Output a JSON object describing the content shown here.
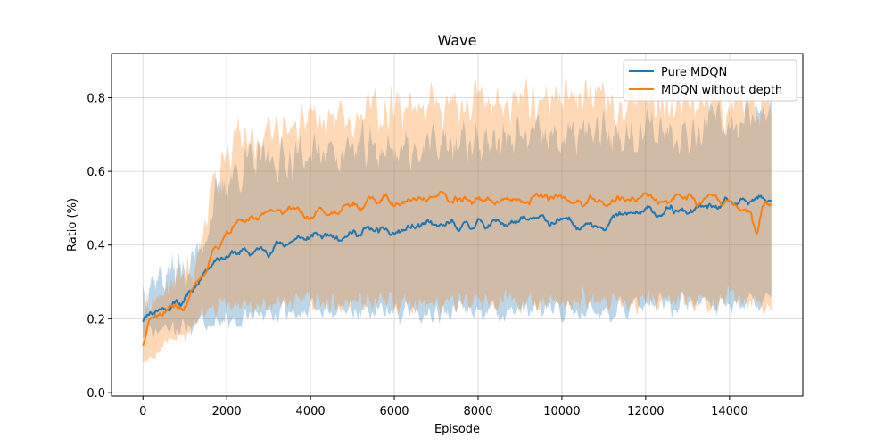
{
  "chart_data": {
    "type": "line",
    "title": "Wave",
    "xlabel": "Episode",
    "ylabel": "Ratio (%)",
    "xlim": [
      -750,
      15750
    ],
    "ylim": [
      -0.01,
      0.92
    ],
    "xticks": [
      0,
      2000,
      4000,
      6000,
      8000,
      10000,
      12000,
      14000
    ],
    "yticks": [
      0.0,
      0.2,
      0.4,
      0.6,
      0.8
    ],
    "grid": true,
    "legend_position": "top-right",
    "series": [
      {
        "name": "Pure MDQN",
        "color": "#1f77b4",
        "points": [
          [
            0,
            0.21
          ],
          [
            200,
            0.22
          ],
          [
            500,
            0.23
          ],
          [
            800,
            0.24
          ],
          [
            1000,
            0.25
          ],
          [
            1200,
            0.28
          ],
          [
            1400,
            0.32
          ],
          [
            1600,
            0.35
          ],
          [
            1800,
            0.37
          ],
          [
            2000,
            0.37
          ],
          [
            2300,
            0.38
          ],
          [
            2600,
            0.38
          ],
          [
            3000,
            0.39
          ],
          [
            3500,
            0.41
          ],
          [
            4000,
            0.42
          ],
          [
            4500,
            0.43
          ],
          [
            5000,
            0.43
          ],
          [
            5500,
            0.44
          ],
          [
            6000,
            0.43
          ],
          [
            6500,
            0.45
          ],
          [
            7000,
            0.45
          ],
          [
            7500,
            0.45
          ],
          [
            8000,
            0.46
          ],
          [
            8500,
            0.46
          ],
          [
            9000,
            0.46
          ],
          [
            9500,
            0.47
          ],
          [
            10000,
            0.46
          ],
          [
            10500,
            0.46
          ],
          [
            11000,
            0.46
          ],
          [
            11500,
            0.48
          ],
          [
            12000,
            0.49
          ],
          [
            12500,
            0.49
          ],
          [
            13000,
            0.49
          ],
          [
            13500,
            0.5
          ],
          [
            14000,
            0.51
          ],
          [
            14500,
            0.51
          ],
          [
            14800,
            0.53
          ],
          [
            15000,
            0.52
          ]
        ],
        "band_upper": [
          [
            0,
            0.3
          ],
          [
            500,
            0.32
          ],
          [
            1000,
            0.34
          ],
          [
            1300,
            0.37
          ],
          [
            1600,
            0.48
          ],
          [
            2000,
            0.58
          ],
          [
            2500,
            0.62
          ],
          [
            3000,
            0.63
          ],
          [
            4000,
            0.65
          ],
          [
            5000,
            0.66
          ],
          [
            6000,
            0.66
          ],
          [
            7000,
            0.67
          ],
          [
            8000,
            0.68
          ],
          [
            9000,
            0.69
          ],
          [
            10000,
            0.69
          ],
          [
            11000,
            0.7
          ],
          [
            12000,
            0.71
          ],
          [
            13000,
            0.72
          ],
          [
            14000,
            0.74
          ],
          [
            14500,
            0.76
          ],
          [
            15000,
            0.78
          ]
        ],
        "band_lower": [
          [
            0,
            0.15
          ],
          [
            500,
            0.17
          ],
          [
            1000,
            0.18
          ],
          [
            1500,
            0.19
          ],
          [
            2000,
            0.2
          ],
          [
            3000,
            0.21
          ],
          [
            4000,
            0.22
          ],
          [
            5000,
            0.22
          ],
          [
            6000,
            0.22
          ],
          [
            7000,
            0.22
          ],
          [
            8000,
            0.22
          ],
          [
            9000,
            0.22
          ],
          [
            10000,
            0.22
          ],
          [
            11000,
            0.22
          ],
          [
            12000,
            0.23
          ],
          [
            13000,
            0.24
          ],
          [
            14000,
            0.24
          ],
          [
            15000,
            0.25
          ]
        ]
      },
      {
        "name": "MDQN without depth",
        "color": "#ff7f0e",
        "points": [
          [
            0,
            0.13
          ],
          [
            150,
            0.19
          ],
          [
            500,
            0.21
          ],
          [
            800,
            0.22
          ],
          [
            1000,
            0.24
          ],
          [
            1300,
            0.3
          ],
          [
            1600,
            0.37
          ],
          [
            1800,
            0.4
          ],
          [
            2000,
            0.45
          ],
          [
            2300,
            0.47
          ],
          [
            2600,
            0.47
          ],
          [
            3000,
            0.48
          ],
          [
            3500,
            0.49
          ],
          [
            4000,
            0.48
          ],
          [
            4500,
            0.49
          ],
          [
            5000,
            0.5
          ],
          [
            5500,
            0.53
          ],
          [
            6000,
            0.52
          ],
          [
            6500,
            0.53
          ],
          [
            7000,
            0.53
          ],
          [
            7500,
            0.52
          ],
          [
            8000,
            0.52
          ],
          [
            8500,
            0.52
          ],
          [
            9000,
            0.52
          ],
          [
            9500,
            0.53
          ],
          [
            10000,
            0.53
          ],
          [
            10500,
            0.52
          ],
          [
            11000,
            0.51
          ],
          [
            11500,
            0.52
          ],
          [
            12000,
            0.53
          ],
          [
            12500,
            0.52
          ],
          [
            13000,
            0.53
          ],
          [
            13500,
            0.52
          ],
          [
            14000,
            0.52
          ],
          [
            14500,
            0.5
          ],
          [
            14650,
            0.43
          ],
          [
            14800,
            0.51
          ],
          [
            15000,
            0.51
          ]
        ],
        "band_upper": [
          [
            0,
            0.22
          ],
          [
            500,
            0.27
          ],
          [
            1000,
            0.31
          ],
          [
            1300,
            0.36
          ],
          [
            1600,
            0.55
          ],
          [
            2000,
            0.65
          ],
          [
            2500,
            0.7
          ],
          [
            3000,
            0.72
          ],
          [
            4000,
            0.74
          ],
          [
            5000,
            0.76
          ],
          [
            6000,
            0.77
          ],
          [
            7000,
            0.78
          ],
          [
            8000,
            0.79
          ],
          [
            9000,
            0.79
          ],
          [
            10000,
            0.8
          ],
          [
            11000,
            0.8
          ],
          [
            12000,
            0.8
          ],
          [
            13000,
            0.8
          ],
          [
            14000,
            0.79
          ],
          [
            15000,
            0.78
          ]
        ],
        "band_lower": [
          [
            0,
            0.1
          ],
          [
            500,
            0.13
          ],
          [
            1000,
            0.16
          ],
          [
            1500,
            0.21
          ],
          [
            2000,
            0.24
          ],
          [
            3000,
            0.24
          ],
          [
            4000,
            0.24
          ],
          [
            5000,
            0.24
          ],
          [
            6000,
            0.24
          ],
          [
            7000,
            0.24
          ],
          [
            8000,
            0.25
          ],
          [
            9000,
            0.25
          ],
          [
            10000,
            0.25
          ],
          [
            11000,
            0.25
          ],
          [
            12000,
            0.25
          ],
          [
            13000,
            0.25
          ],
          [
            14000,
            0.25
          ],
          [
            15000,
            0.24
          ]
        ]
      }
    ]
  }
}
